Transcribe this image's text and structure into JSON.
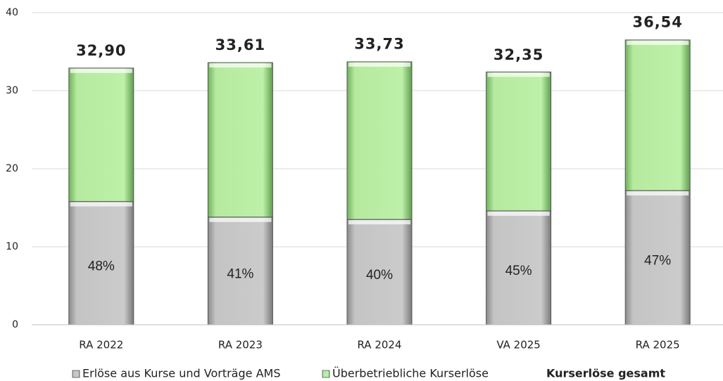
{
  "chart_data": {
    "type": "stacked_bar",
    "categories": [
      "RA 2022",
      "RA 2023",
      "RA 2024",
      "VA 2025",
      "RA 2025"
    ],
    "series": [
      {
        "name": "Erlöse aus Kurse und Vorträge AMS",
        "color": "#c8c8c8",
        "values": [
          15.8,
          13.8,
          13.5,
          14.6,
          17.2
        ]
      },
      {
        "name": "Überbetriebliche Kurserlöse",
        "color": "#b9eda7",
        "values": [
          17.1,
          19.8,
          20.2,
          17.8,
          19.3
        ]
      }
    ],
    "percent_labels": [
      "48%",
      "41%",
      "40%",
      "45%",
      "47%"
    ],
    "total": {
      "name": "Kurserlöse gesamt",
      "values": [
        32.9,
        33.61,
        33.73,
        32.35,
        36.54
      ],
      "value_labels": [
        "32,90",
        "33,61",
        "33,73",
        "32,35",
        "36,54"
      ]
    },
    "ylim": [
      0,
      40
    ],
    "yticks": [
      0,
      10,
      20,
      30,
      40
    ],
    "grid": true,
    "legend": "bottom"
  }
}
